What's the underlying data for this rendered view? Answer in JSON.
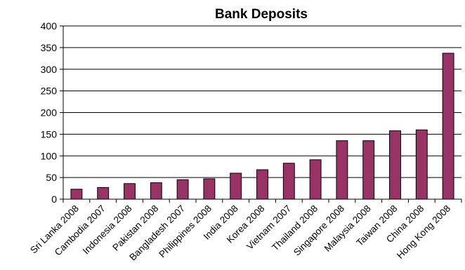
{
  "chart_data": {
    "type": "bar",
    "title": "Bank Deposits",
    "xlabel": "",
    "ylabel": "",
    "ylim": [
      0,
      400
    ],
    "yticks": [
      0,
      50,
      100,
      150,
      200,
      250,
      300,
      350,
      400
    ],
    "grid": true,
    "legend": "none",
    "bar_color": "#993366",
    "categories": [
      "Sri Lanka 2008",
      "Cambodia 2007",
      "Indonesia 2008",
      "Pakistan 2008",
      "Bangladesh 2007",
      "Philippines 2008",
      "India 2008",
      "Korea 2008",
      "Vietnam 2007",
      "Thailand 2008",
      "Singapore 2008",
      "Malaysia 2008",
      "Taiwan 2008",
      "China 2008",
      "Hong Kong 2008"
    ],
    "values": [
      23,
      27,
      36,
      38,
      45,
      47,
      60,
      68,
      83,
      91,
      135,
      135,
      158,
      160,
      337
    ]
  }
}
